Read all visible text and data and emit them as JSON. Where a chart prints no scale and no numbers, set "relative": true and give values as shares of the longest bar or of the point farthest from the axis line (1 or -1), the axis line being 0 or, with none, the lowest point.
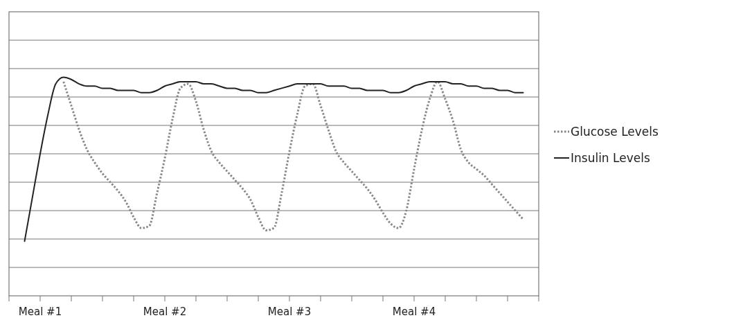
{
  "chart_data": {
    "type": "line",
    "relative": true,
    "grid": "y",
    "legend": "right",
    "categories": [
      null,
      null,
      null,
      null,
      "Meal #1",
      null,
      null,
      null,
      null,
      null,
      null,
      null,
      null,
      null,
      null,
      null,
      null,
      null,
      null,
      null,
      "Meal #2",
      null,
      null,
      null,
      null,
      null,
      null,
      null,
      null,
      null,
      null,
      null,
      null,
      null,
      null,
      null,
      "Meal #3",
      null,
      null,
      null,
      null,
      null,
      null,
      null,
      null,
      null,
      null,
      null,
      null,
      null,
      null,
      null,
      "Meal #4",
      null,
      null,
      null,
      null,
      null,
      null,
      null,
      null,
      null,
      null,
      null,
      null,
      null,
      null,
      null,
      null
    ],
    "series": [
      {
        "name": "Glucose Levels",
        "color": "#888888",
        "line_style": "dotted",
        "values": [
          null,
          null,
          null,
          null,
          null,
          null,
          null,
          0.98,
          0.87,
          0.76,
          0.67,
          0.61,
          0.56,
          0.52,
          0.48,
          0.43,
          0.36,
          0.31,
          0.32,
          0.47,
          0.63,
          0.81,
          0.95,
          0.97,
          0.89,
          0.76,
          0.66,
          0.61,
          0.57,
          0.53,
          0.49,
          0.44,
          0.36,
          0.3,
          0.31,
          0.47,
          0.66,
          0.83,
          0.96,
          0.97,
          0.87,
          0.76,
          0.66,
          0.61,
          0.57,
          0.53,
          0.49,
          0.44,
          0.38,
          0.33,
          0.31,
          0.39,
          0.58,
          0.76,
          0.9,
          0.98,
          0.9,
          0.8,
          0.67,
          0.61,
          0.58,
          0.55,
          0.51,
          0.47,
          0.43,
          0.39,
          0.35,
          null,
          null
        ]
      },
      {
        "name": "Insulin Levels",
        "color": "#222222",
        "line_style": "solid",
        "values": [
          null,
          null,
          0.25,
          0.45,
          0.65,
          0.83,
          0.97,
          1,
          0.99,
          0.97,
          0.96,
          0.96,
          0.95,
          0.95,
          0.94,
          0.94,
          0.94,
          0.93,
          0.93,
          0.94,
          0.96,
          0.97,
          0.98,
          0.98,
          0.98,
          0.97,
          0.97,
          0.96,
          0.95,
          0.95,
          0.94,
          0.94,
          0.93,
          0.93,
          0.94,
          0.95,
          0.96,
          0.97,
          0.97,
          0.97,
          0.97,
          0.96,
          0.96,
          0.96,
          0.95,
          0.95,
          0.94,
          0.94,
          0.94,
          0.93,
          0.93,
          0.94,
          0.96,
          0.97,
          0.98,
          0.98,
          0.98,
          0.97,
          0.97,
          0.96,
          0.96,
          0.95,
          0.95,
          0.94,
          0.94,
          0.93,
          0.93,
          null,
          null
        ]
      }
    ]
  }
}
